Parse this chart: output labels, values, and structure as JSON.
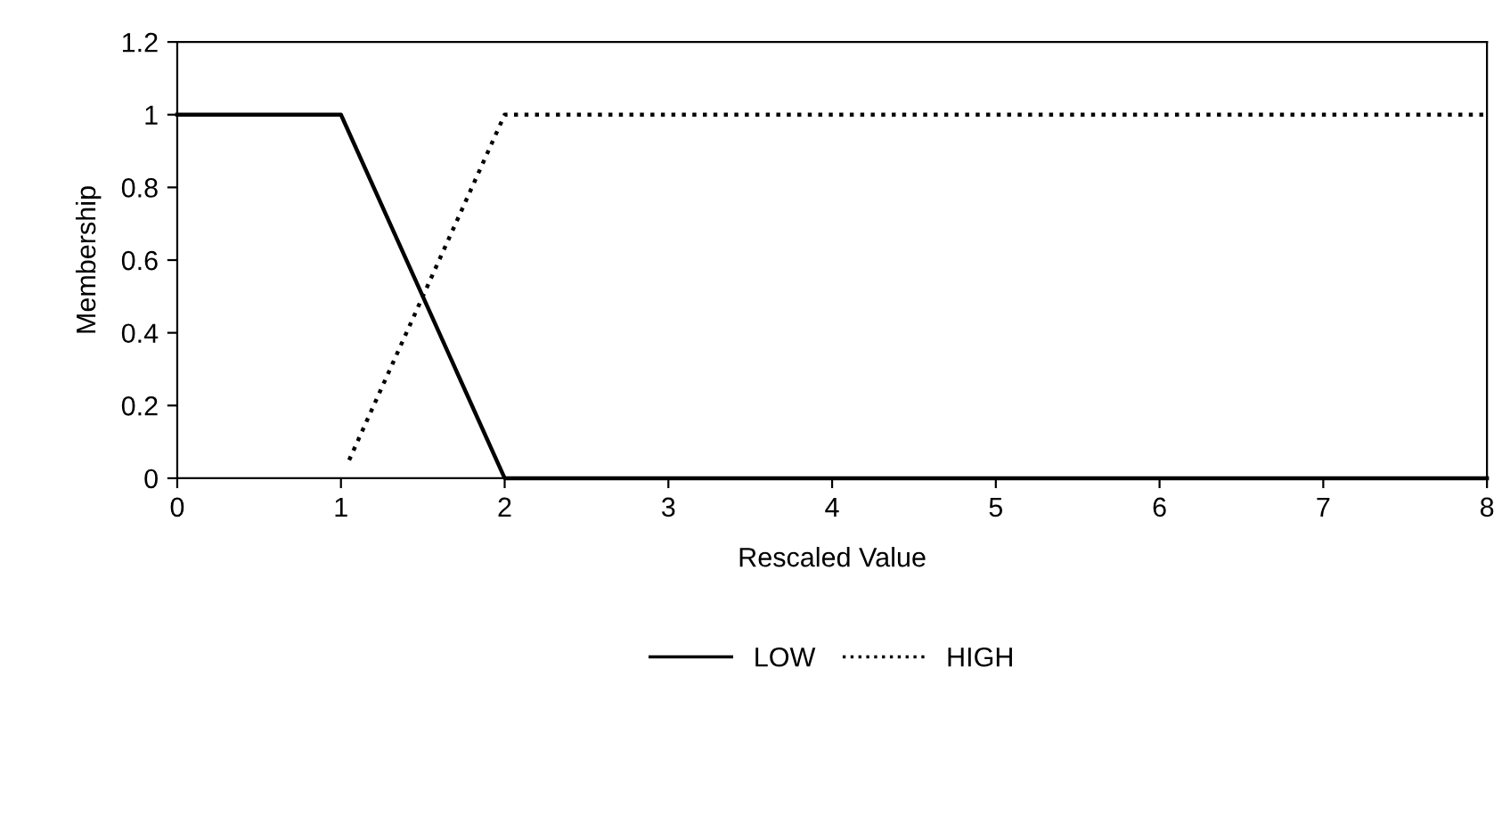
{
  "chart_data": {
    "type": "line",
    "xlabel": "Rescaled Value",
    "ylabel": "Membership",
    "xlim": [
      0,
      8
    ],
    "ylim": [
      0,
      1.2
    ],
    "xticks": [
      0,
      1,
      2,
      3,
      4,
      5,
      6,
      7,
      8
    ],
    "yticks": [
      0,
      0.2,
      0.4,
      0.6,
      0.8,
      1,
      1.2
    ],
    "series": [
      {
        "name": "LOW",
        "color": "#000000",
        "line_style": "solid",
        "x": [
          0,
          1,
          2,
          8
        ],
        "values": [
          1,
          1,
          0,
          0
        ]
      },
      {
        "name": "HIGH",
        "color": "#000000",
        "line_style": "dotted",
        "x": [
          1.05,
          2,
          8
        ],
        "values": [
          0.05,
          1,
          1
        ]
      }
    ],
    "grid": false,
    "legend": "bottom",
    "marker": "none"
  }
}
